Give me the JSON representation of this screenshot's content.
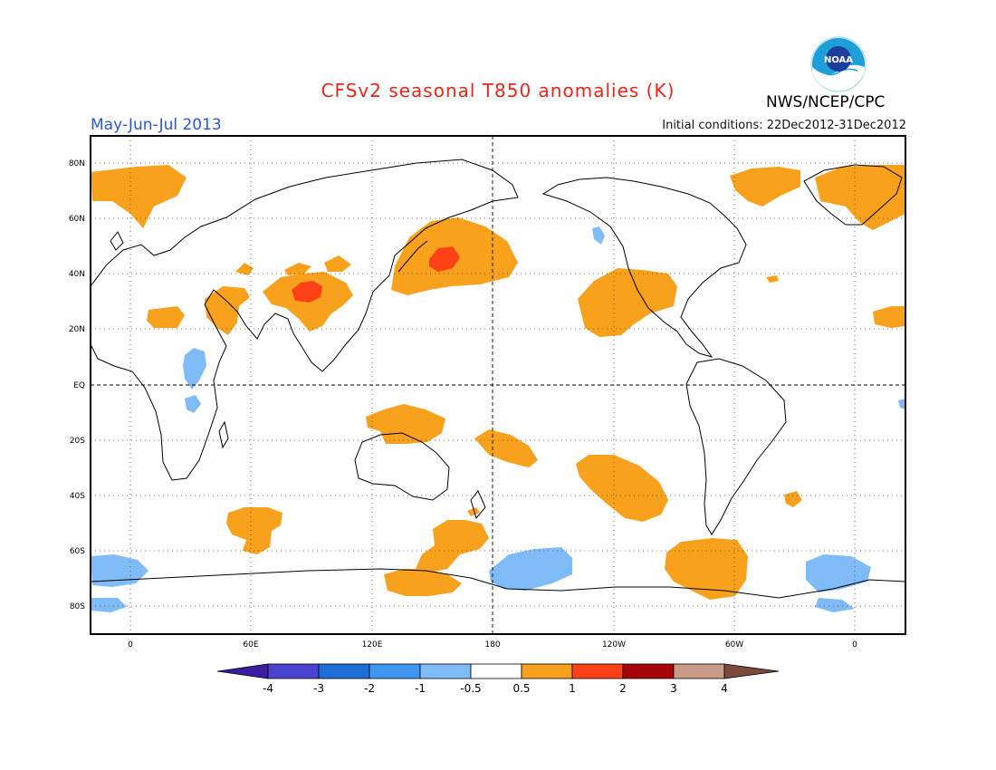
{
  "header": {
    "title": "CFSv2 seasonal T850 anomalies (K)",
    "season": "May-Jun-Jul 2013",
    "initial_conditions": "Initial conditions: 22Dec2012-31Dec2012",
    "agency": "NWS/NCEP/CPC",
    "logo_text": "NOAA"
  },
  "map": {
    "projection": "cylindrical equidistant",
    "lat_labels": [
      "80N",
      "60N",
      "40N",
      "20N",
      "EQ",
      "20S",
      "40S",
      "60S",
      "80S"
    ],
    "lon_labels": [
      "0",
      "60E",
      "120E",
      "180",
      "120W",
      "60W",
      "0"
    ],
    "gridlines": "dotted",
    "reference_lines": [
      "EQ",
      "180"
    ]
  },
  "legend": {
    "levels": [
      "-4",
      "-3",
      "-2",
      "-1",
      "-0.5",
      "0.5",
      "1",
      "2",
      "3",
      "4"
    ],
    "colors": [
      "#3a1fa0",
      "#4a43cf",
      "#1f6dd6",
      "#4096ef",
      "#7fbcf7",
      "#ffffff",
      "#f8a11d",
      "#fe4117",
      "#a6050a",
      "#c99c88",
      "#7a4b3a"
    ]
  },
  "colors": {
    "warm_0_5_to_1": "#f8a11d",
    "warm_1_to_2": "#fe4117",
    "cool_minus_0_5_to_minus_1": "#7fbcf7",
    "title": "#e8261c",
    "season": "#2b55d8"
  }
}
